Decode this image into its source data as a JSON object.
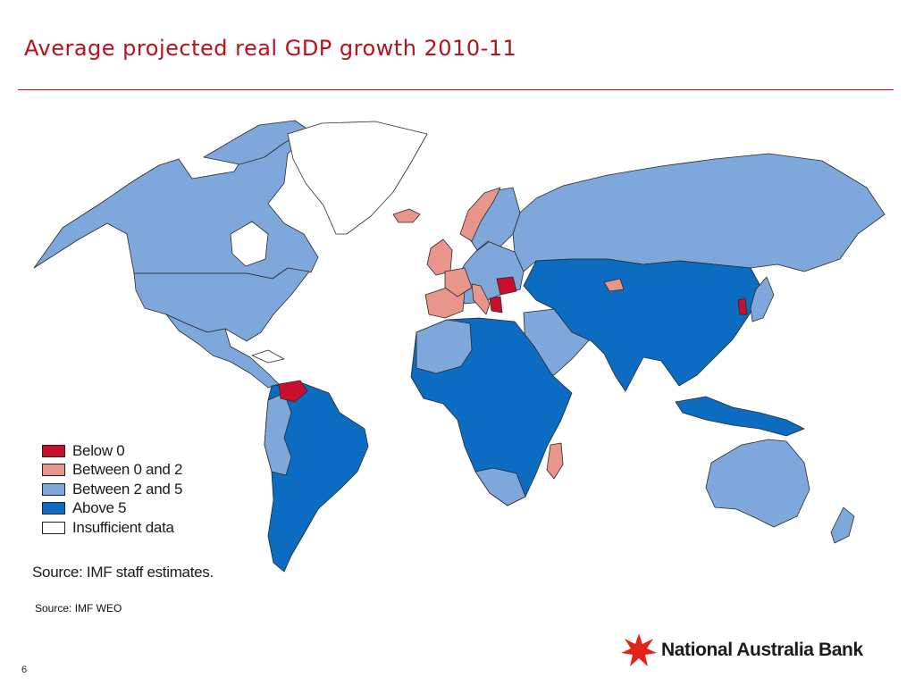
{
  "slide": {
    "title": "Average projected real GDP growth 2010-11",
    "source": "Source: IMF WEO",
    "page_number": "6"
  },
  "map": {
    "source_note": "Source: IMF staff estimates.",
    "colors": {
      "below_0": "#c8102e",
      "between_0_2": "#e8958c",
      "between_2_5": "#7ea7db",
      "above_5": "#0b6cc1",
      "insufficient": "#ffffff",
      "border": "#2a2a2a"
    },
    "legend": [
      {
        "label": "Below 0",
        "color": "#c8102e"
      },
      {
        "label": "Between 0 and 2",
        "color": "#e8958c"
      },
      {
        "label": "Between 2 and 5",
        "color": "#7ea7db"
      },
      {
        "label": "Above 5",
        "color": "#0b6cc1"
      },
      {
        "label": "Insufficient data",
        "color": "#ffffff"
      }
    ]
  },
  "brand": {
    "name": "National Australia Bank",
    "star_color": "#e2231a"
  }
}
